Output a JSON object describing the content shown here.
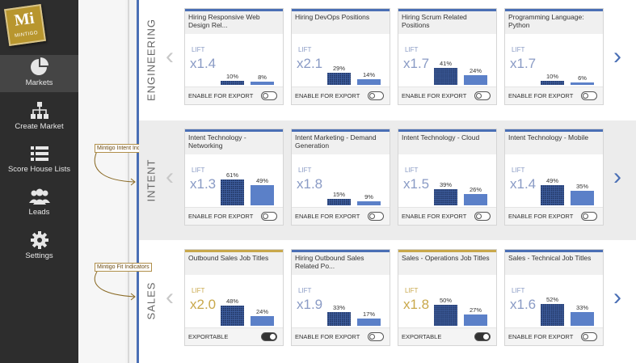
{
  "brand": {
    "logo_main": "Mi",
    "logo_sub": "MINTIGO",
    "accent": "#4a6fb5",
    "fit_accent": "#c9a84b"
  },
  "nav": [
    {
      "label": "Markets",
      "icon": "pie-chart-icon",
      "active": true
    },
    {
      "label": "Create Market",
      "icon": "org-chart-icon"
    },
    {
      "label": "Score House Lists",
      "icon": "list-icon"
    },
    {
      "label": "Leads",
      "icon": "people-icon"
    },
    {
      "label": "Settings",
      "icon": "gear-icon"
    }
  ],
  "callouts": {
    "intent": "Mintigo Intent Indicators",
    "fit": "Mintigo Fit Indicators"
  },
  "lift_label": "LIFT",
  "rows": [
    {
      "label": "ENGINEERING",
      "cards": [
        {
          "title": "Hiring Responsive Web Design Rel...",
          "lift": "x1.4",
          "bar1": "10%",
          "bar2": "8%",
          "export": "ENABLE FOR EXPORT",
          "on": false
        },
        {
          "title": "Hiring DevOps Positions",
          "lift": "x2.1",
          "bar1": "29%",
          "bar2": "14%",
          "export": "ENABLE FOR EXPORT",
          "on": false
        },
        {
          "title": "Hiring Scrum Related Positions",
          "lift": "x1.7",
          "bar1": "41%",
          "bar2": "24%",
          "export": "ENABLE FOR EXPORT",
          "on": false
        },
        {
          "title": "Programming Language: Python",
          "lift": "x1.7",
          "bar1": "10%",
          "bar2": "6%",
          "export": "ENABLE FOR EXPORT",
          "on": false
        }
      ]
    },
    {
      "label": "INTENT",
      "cards": [
        {
          "title": "Intent Technology - Networking",
          "lift": "x1.3",
          "bar1": "61%",
          "bar2": "49%",
          "export": "ENABLE FOR EXPORT",
          "on": false
        },
        {
          "title": "Intent Marketing - Demand Generation",
          "lift": "x1.8",
          "bar1": "15%",
          "bar2": "9%",
          "export": "ENABLE FOR EXPORT",
          "on": false
        },
        {
          "title": "Intent Technology - Cloud",
          "lift": "x1.5",
          "bar1": "39%",
          "bar2": "26%",
          "export": "ENABLE FOR EXPORT",
          "on": false
        },
        {
          "title": "Intent Technology - Mobile",
          "lift": "x1.4",
          "bar1": "49%",
          "bar2": "35%",
          "export": "ENABLE FOR EXPORT",
          "on": false
        }
      ]
    },
    {
      "label": "SALES",
      "cards": [
        {
          "title": "Outbound Sales Job Titles",
          "lift": "x2.0",
          "bar1": "48%",
          "bar2": "24%",
          "export": "EXPORTABLE",
          "on": true,
          "fit": true
        },
        {
          "title": "Hiring Outbound Sales Related Po...",
          "lift": "x1.9",
          "bar1": "33%",
          "bar2": "17%",
          "export": "ENABLE FOR EXPORT",
          "on": false
        },
        {
          "title": "Sales - Operations Job Titles",
          "lift": "x1.8",
          "bar1": "50%",
          "bar2": "27%",
          "export": "EXPORTABLE",
          "on": true,
          "fit": true
        },
        {
          "title": "Sales - Technical Job Titles",
          "lift": "x1.6",
          "bar1": "52%",
          "bar2": "33%",
          "export": "ENABLE FOR EXPORT",
          "on": false
        }
      ]
    }
  ]
}
